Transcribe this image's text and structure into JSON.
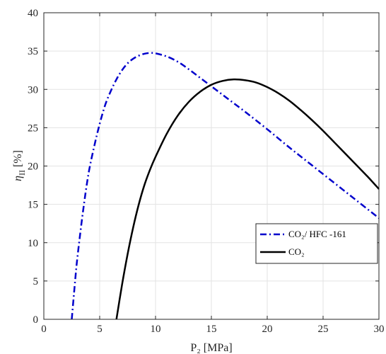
{
  "chart_data": {
    "type": "line",
    "title": "",
    "xlabel": "P₂ [MPa]",
    "ylabel_symbol": "η",
    "ylabel_sub": "II",
    "ylabel_unit": " [%]",
    "xlim": [
      0,
      30
    ],
    "ylim": [
      0,
      40
    ],
    "xticks": [
      0,
      5,
      10,
      15,
      20,
      25,
      30
    ],
    "yticks": [
      0,
      5,
      10,
      15,
      20,
      25,
      30,
      35,
      40
    ],
    "grid": true,
    "legend_position": "lower-right",
    "series": [
      {
        "name": "CO₂/ HFC -161",
        "color": "#0000cc",
        "style": "dash-dot",
        "x": [
          2.5,
          2.8,
          3.0,
          3.5,
          4.0,
          4.5,
          5.0,
          5.5,
          6.0,
          6.5,
          7.0,
          7.5,
          8.0,
          8.5,
          9.0,
          9.5,
          10.0,
          11.0,
          12.0,
          13.0,
          14.0,
          15.0,
          16.0,
          17.0,
          18.0,
          20.0,
          22.0,
          24.0,
          26.0,
          28.0,
          30.0
        ],
        "y": [
          0.0,
          5.0,
          8.0,
          14.0,
          19.0,
          22.5,
          25.5,
          28.0,
          29.8,
          31.3,
          32.5,
          33.4,
          34.0,
          34.4,
          34.65,
          34.75,
          34.7,
          34.3,
          33.6,
          32.6,
          31.5,
          30.4,
          29.3,
          28.2,
          27.1,
          24.8,
          22.4,
          20.1,
          17.8,
          15.5,
          13.2
        ]
      },
      {
        "name": "CO₂",
        "color": "#000000",
        "style": "solid",
        "x": [
          6.5,
          7.0,
          7.5,
          8.0,
          8.5,
          9.0,
          9.5,
          10.0,
          11.0,
          12.0,
          13.0,
          14.0,
          15.0,
          16.0,
          17.0,
          18.0,
          19.0,
          20.0,
          21.0,
          22.0,
          23.0,
          24.0,
          25.0,
          26.0,
          27.0,
          28.0,
          29.0,
          30.0
        ],
        "y": [
          0.0,
          4.5,
          8.5,
          12.0,
          15.0,
          17.5,
          19.5,
          21.2,
          24.2,
          26.6,
          28.4,
          29.7,
          30.6,
          31.1,
          31.3,
          31.2,
          30.9,
          30.3,
          29.5,
          28.5,
          27.3,
          26.0,
          24.6,
          23.1,
          21.6,
          20.1,
          18.6,
          17.0
        ]
      }
    ]
  }
}
